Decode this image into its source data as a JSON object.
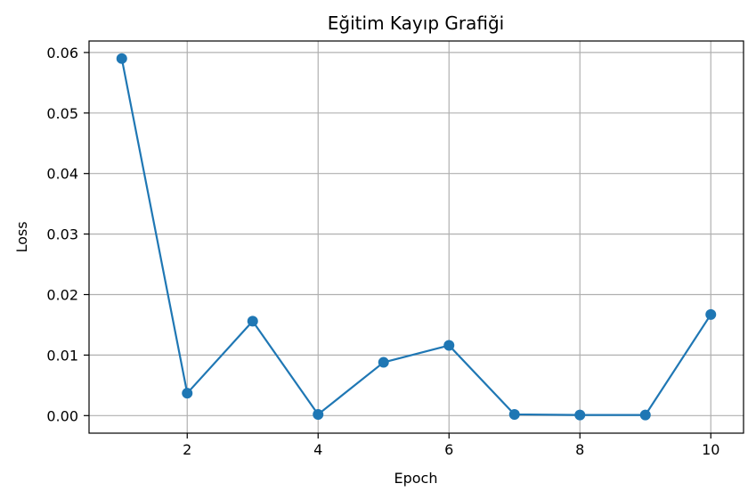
{
  "chart_data": {
    "type": "line",
    "title": "Eğitim Kayıp Grafiği",
    "xlabel": "Epoch",
    "ylabel": "Loss",
    "x": [
      1,
      2,
      3,
      4,
      5,
      6,
      7,
      8,
      9,
      10
    ],
    "series": [
      {
        "values": [
          0.059,
          0.0037,
          0.0156,
          0.0002,
          0.0088,
          0.0116,
          0.0002,
          0.0001,
          0.0001,
          0.0167
        ],
        "color": "#1f77b4",
        "marker": "circle"
      }
    ],
    "xlim": [
      0.5,
      10.5
    ],
    "ylim": [
      -0.0029,
      0.0619
    ],
    "xticks": [
      "2",
      "4",
      "6",
      "8",
      "10"
    ],
    "xtick_values": [
      2,
      4,
      6,
      8,
      10
    ],
    "yticks": [
      "0.00",
      "0.01",
      "0.02",
      "0.03",
      "0.04",
      "0.05",
      "0.06"
    ],
    "ytick_values": [
      0,
      0.01,
      0.02,
      0.03,
      0.04,
      0.05,
      0.06
    ],
    "grid": true,
    "colors": {
      "grid": "#b0b0b0",
      "axes": "#000000"
    }
  }
}
